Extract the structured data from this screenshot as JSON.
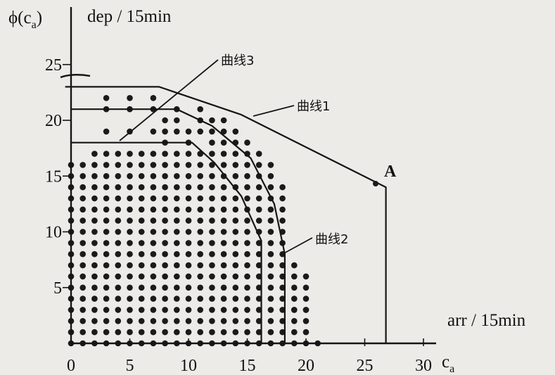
{
  "chart_data": {
    "type": "scatter",
    "title": "",
    "ylabel": "ϕ(c",
    "ylabel_sub": "a",
    "ylabel_suffix": ")",
    "ylabel_unit": "dep / 15min",
    "xlabel": "c",
    "xlabel_sub": "a",
    "xlabel_unit": "arr / 15min",
    "xlim": [
      0,
      30
    ],
    "ylim": [
      0,
      25
    ],
    "x_ticks": [
      "0",
      "5",
      "10",
      "15",
      "20",
      "25",
      "30"
    ],
    "y_ticks": [
      "5",
      "10",
      "15",
      "20",
      "25"
    ],
    "grid": false,
    "dot_columns": [
      {
        "x": 0,
        "ymax": 16
      },
      {
        "x": 1,
        "ymax": 16
      },
      {
        "x": 2,
        "ymax": 17
      },
      {
        "x": 3,
        "ymax": 22
      },
      {
        "x": 4,
        "ymax": 17
      },
      {
        "x": 5,
        "ymax": 22
      },
      {
        "x": 6,
        "ymax": 17
      },
      {
        "x": 7,
        "ymax": 22
      },
      {
        "x": 8,
        "ymax": 20
      },
      {
        "x": 9,
        "ymax": 21
      },
      {
        "x": 10,
        "ymax": 19
      },
      {
        "x": 11,
        "ymax": 21
      },
      {
        "x": 12,
        "ymax": 20
      },
      {
        "x": 13,
        "ymax": 20
      },
      {
        "x": 14,
        "ymax": 19
      },
      {
        "x": 15,
        "ymax": 18
      },
      {
        "x": 16,
        "ymax": 17
      },
      {
        "x": 17,
        "ymax": 16
      },
      {
        "x": 18,
        "ymax": 14
      },
      {
        "x": 19,
        "ymax": 7
      },
      {
        "x": 20,
        "ymax": 6
      },
      {
        "x": 21,
        "ymax": 0
      }
    ],
    "dot_gaps": [
      [
        3,
        20
      ],
      [
        3,
        18
      ],
      [
        5,
        20
      ],
      [
        5,
        18
      ],
      [
        7,
        20
      ],
      [
        7,
        18
      ],
      [
        9,
        18
      ],
      [
        11,
        18
      ]
    ],
    "dot_extras": [
      [
        19,
        3
      ],
      [
        20,
        3
      ]
    ],
    "series": [
      {
        "name": "曲线1",
        "points": [
          [
            -0.5,
            23
          ],
          [
            7.5,
            23
          ],
          [
            14.5,
            20.5
          ],
          [
            26.8,
            14
          ],
          [
            26.8,
            0
          ]
        ]
      },
      {
        "name": "曲线2",
        "points": [
          [
            0,
            21
          ],
          [
            9,
            21
          ],
          [
            12,
            19.5
          ],
          [
            15.3,
            16.6
          ],
          [
            17.3,
            12.5
          ],
          [
            18.2,
            8
          ],
          [
            18.2,
            0
          ]
        ]
      },
      {
        "name": "曲线3",
        "points": [
          [
            0,
            18
          ],
          [
            10.3,
            18
          ],
          [
            12.2,
            16.2
          ],
          [
            14.5,
            13.2
          ],
          [
            16.2,
            9.2
          ],
          [
            16.2,
            0
          ]
        ]
      }
    ],
    "point_labels": [
      {
        "label": "A",
        "x": 26.8,
        "y": 14
      }
    ]
  }
}
